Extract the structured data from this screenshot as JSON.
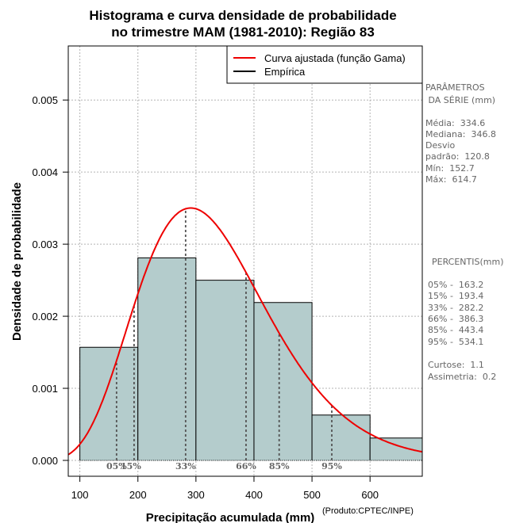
{
  "chart_data": {
    "type": "histogram",
    "title_line1": "Histograma e curva densidade de probabilidade",
    "title_line2": "no trimestre MAM (1981-2010): Região 83",
    "xlabel": "Precipitação acumulada (mm)",
    "ylabel": "Densidade de probabilidade",
    "credit": "(Produto:CPTEC/INPE)",
    "xlim": [
      80,
      690
    ],
    "ylim": [
      -0.00022,
      0.00575
    ],
    "x_ticks": [
      100,
      200,
      300,
      400,
      500,
      600
    ],
    "y_ticks": [
      0.0,
      0.001,
      0.002,
      0.003,
      0.004,
      0.005
    ],
    "y_tick_labels": [
      "0.000",
      "0.001",
      "0.002",
      "0.003",
      "0.004",
      "0.005"
    ],
    "bins": [
      {
        "x0": 100,
        "x1": 200,
        "density": 0.00157
      },
      {
        "x0": 200,
        "x1": 300,
        "density": 0.00281
      },
      {
        "x0": 300,
        "x1": 400,
        "density": 0.0025
      },
      {
        "x0": 400,
        "x1": 500,
        "density": 0.00219
      },
      {
        "x0": 500,
        "x1": 600,
        "density": 0.00063
      },
      {
        "x0": 600,
        "x1": 700,
        "density": 0.00031
      }
    ],
    "gamma_fit": {
      "mode_x": 287,
      "peak_density": 0.0035,
      "mean": 334.6,
      "sd": 120.8
    },
    "legend": [
      {
        "label": "Curva ajustada (função Gama)",
        "color": "#ee0000"
      },
      {
        "label": "Empírica",
        "color": "#000000"
      }
    ],
    "percentile_markers": [
      {
        "label": "05%",
        "value": 163.2
      },
      {
        "label": "15%",
        "value": 193.4
      },
      {
        "label": "33%",
        "value": 282.2
      },
      {
        "label": "66%",
        "value": 386.3
      },
      {
        "label": "85%",
        "value": 443.4
      },
      {
        "label": "95%",
        "value": 534.1
      }
    ],
    "colors": {
      "bar_fill": "#b4cccc",
      "curve": "#ee0000",
      "grid": "#b3b3b3",
      "marker": "#555555",
      "marker_text": "#666666"
    }
  },
  "stats_panel": {
    "params_title_1": "PARÂMETROS",
    "params_title_2": " DA SÉRIE (mm)",
    "media": "Média:  334.6",
    "mediana": "Mediana:  346.8",
    "desvio_1": "Desvio",
    "desvio_2": "padrão:  120.8",
    "min": "Mín:  152.7",
    "max": "Máx:  614.7",
    "percentis_title": "PERCENTIS(mm)",
    "p05": "05% -  163.2",
    "p15": "15% -  193.4",
    "p33": "33% -  282.2",
    "p66": "66% -  386.3",
    "p85": "85% -  443.4",
    "p95": "95% -  534.1",
    "curtose": "Curtose:  1.1",
    "assimetria": "Assimetria:  0.2"
  }
}
